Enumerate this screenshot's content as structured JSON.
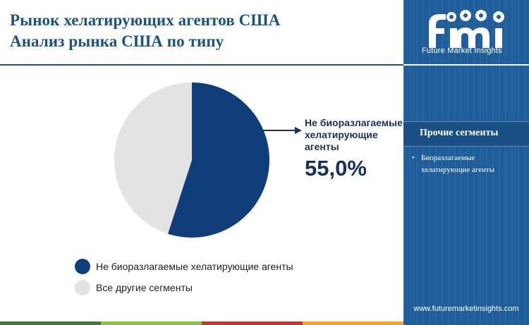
{
  "header": {
    "title_line1": "Рынок хелатирующих агентов США",
    "title_line2": "Анализ рынка США по типу"
  },
  "chart_data": {
    "type": "pie",
    "title": "Анализ рынка США по типу",
    "slices": [
      {
        "label": "Не биоразлагаемые хелатирующие агенты",
        "value": 55.0,
        "color": "#0f3f7a"
      },
      {
        "label": "Все другие сегменты",
        "value": 45.0,
        "color": "#e3e3e3"
      }
    ],
    "highlight": {
      "label": "Не биоразлагаемые хелатирующие агенты",
      "value_text": "55,0%"
    },
    "legend_position": "bottom-left"
  },
  "sidebar": {
    "logo_text": "Future Market Insights",
    "panel_title": "Прочие сегменты",
    "items": [
      "Биоразлагаемые хелатирующие агенты"
    ],
    "url": "www.futuremarketinsights.com"
  },
  "colors": {
    "title": "#1b5287",
    "sidebar_bg": "#1f5e9b",
    "bottom_bar": [
      "#3a7d36",
      "#8cc63f",
      "#c0392b",
      "#f5a623"
    ]
  }
}
